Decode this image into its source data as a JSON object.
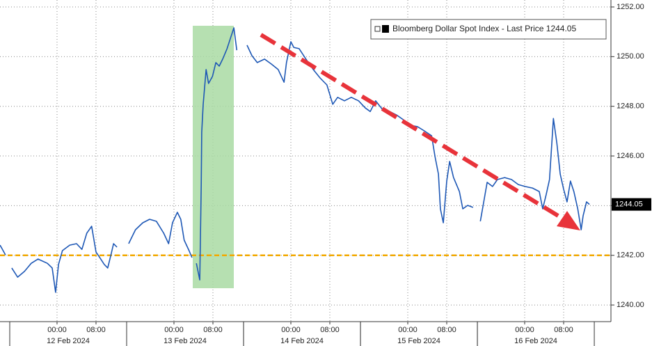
{
  "chart_data": {
    "type": "line",
    "xticks": [
      {
        "value": 0,
        "label": "00:00"
      },
      {
        "value": 8,
        "label": "08:00"
      },
      {
        "value": 24,
        "label": "00:00"
      },
      {
        "value": 32,
        "label": "08:00"
      },
      {
        "value": 48,
        "label": "00:00"
      },
      {
        "value": 56,
        "label": "08:00"
      },
      {
        "value": 72,
        "label": "00:00"
      },
      {
        "value": 80,
        "label": "08:00"
      },
      {
        "value": 96,
        "label": "00:00"
      },
      {
        "value": 104,
        "label": "08:00"
      }
    ],
    "date_labels": [
      {
        "value": 2.29,
        "label": "12 Feb 2024"
      },
      {
        "value": 26.29,
        "label": "13 Feb 2024"
      },
      {
        "value": 50.29,
        "label": "14 Feb 2024"
      },
      {
        "value": 74.29,
        "label": "15 Feb 2024"
      },
      {
        "value": 98.29,
        "label": "16 Feb 2024"
      }
    ],
    "xlim": [
      -11.71,
      113.71
    ],
    "ylim": [
      1239.33,
      1252.28
    ],
    "yticks": [
      {
        "value": 1240,
        "label": "1240.00"
      },
      {
        "value": 1242,
        "label": "1242.00"
      },
      {
        "value": 1244,
        "label": "1244.00"
      },
      {
        "value": 1246,
        "label": "1246.00"
      },
      {
        "value": 1248,
        "label": "1248.00"
      },
      {
        "value": 1250,
        "label": "1250.00"
      },
      {
        "value": 1252,
        "label": "1252.00"
      }
    ],
    "grid": true,
    "reference_line": {
      "value": 1242,
      "color": "#f2a900"
    },
    "last_value": {
      "value": 1244.05,
      "label": "1244.05"
    },
    "series": [
      {
        "name": "Bloomberg Dollar Spot Index - Last Price",
        "color": "#1d57b5",
        "x": [
          -11.7,
          -10.6,
          null,
          -9.3,
          -8.1,
          -6.7,
          -5.3,
          -3.9,
          -2.0,
          -1.0,
          -0.3,
          0.3,
          1.1,
          2.6,
          4.0,
          5.1,
          6.1,
          7.1,
          8.0,
          8.6,
          9.7,
          10.4,
          11.1,
          11.6,
          12.3,
          null,
          14.7,
          16.1,
          17.6,
          19.0,
          20.4,
          21.9,
          22.9,
          23.7,
          24.7,
          25.4,
          26.1,
          27.1,
          27.7,
          null,
          28.6,
          29.3,
          29.6,
          29.7,
          30.0,
          30.6,
          31.1,
          31.9,
          32.6,
          33.3,
          34.0,
          34.9,
          35.6,
          36.3,
          36.9,
          null,
          39.0,
          40.0,
          41.1,
          42.6,
          44.0,
          45.4,
          46.6,
          47.1,
          48.0,
          48.6,
          49.7,
          51.1,
          52.6,
          54.0,
          55.4,
          56.6,
          57.6,
          59.0,
          60.4,
          61.9,
          63.3,
          64.3,
          65.4,
          66.9,
          68.3,
          69.7,
          71.1,
          72.6,
          74.0,
          75.4,
          76.9,
          77.6,
          78.3,
          78.7,
          79.3,
          80.0,
          80.6,
          81.4,
          82.6,
          83.3,
          84.3,
          85.4,
          null,
          86.9,
          87.6,
          88.3,
          89.4,
          90.4,
          91.9,
          93.3,
          94.7,
          96.1,
          97.6,
          99.0,
          99.7,
          100.4,
          101.1,
          101.9,
          102.6,
          103.3,
          104.0,
          104.7,
          105.4,
          106.1,
          106.9,
          107.6,
          108.0,
          108.7,
          109.3
        ],
        "values": [
          1242.41,
          1242.02,
          null,
          1241.49,
          1241.12,
          1241.35,
          1241.68,
          1241.85,
          1241.68,
          1241.49,
          1240.51,
          1241.63,
          1242.19,
          1242.41,
          1242.47,
          1242.24,
          1242.89,
          1243.17,
          1242.13,
          1241.96,
          1241.63,
          1241.49,
          1242.05,
          1242.47,
          1242.33,
          null,
          1242.47,
          1243.03,
          1243.31,
          1243.45,
          1243.37,
          1242.89,
          1242.47,
          1243.31,
          1243.73,
          1243.45,
          1242.61,
          1242.19,
          1241.91,
          null,
          1241.68,
          1241.01,
          1244.85,
          1246.95,
          1248.08,
          1249.48,
          1248.92,
          1249.2,
          1249.76,
          1249.62,
          1249.9,
          1250.32,
          1250.74,
          1251.16,
          1250.26,
          null,
          1250.46,
          1250.04,
          1249.76,
          1249.9,
          1249.7,
          1249.48,
          1248.97,
          1249.76,
          1250.6,
          1250.37,
          1250.32,
          1249.9,
          1249.48,
          1249.14,
          1248.86,
          1248.08,
          1248.36,
          1248.22,
          1248.36,
          1248.22,
          1247.93,
          1247.79,
          1248.22,
          1247.85,
          1247.79,
          1247.65,
          1247.46,
          1247.23,
          1247.18,
          1247.01,
          1246.81,
          1245.97,
          1245.27,
          1243.87,
          1243.31,
          1244.99,
          1245.78,
          1245.13,
          1244.57,
          1243.87,
          1244.01,
          1243.93,
          null,
          1243.37,
          1244.15,
          1244.94,
          1244.77,
          1245.05,
          1245.13,
          1245.05,
          1244.85,
          1244.77,
          1244.71,
          1244.57,
          1243.87,
          1244.43,
          1245.05,
          1247.51,
          1246.53,
          1245.27,
          1244.66,
          1244.15,
          1244.99,
          1244.57,
          1243.87,
          1243.03,
          1243.59,
          1244.15,
          1244.05
        ]
      }
    ]
  }
}
